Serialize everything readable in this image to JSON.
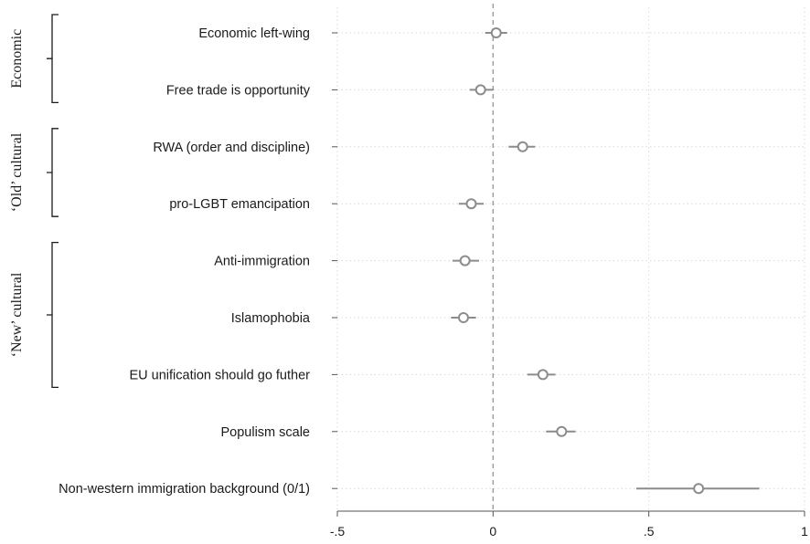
{
  "chart_data": {
    "type": "scatter",
    "orientation": "horizontal-coefficient-plot",
    "categories": [
      "Economic left-wing",
      "Free trade is opportunity",
      "RWA (order and discipline)",
      "pro-LGBT emancipation",
      "Anti-immigration",
      "Islamophobia",
      "EU unification should go futher",
      "Populism scale",
      "Non-western immigration background (0/1)"
    ],
    "estimates": [
      0.01,
      -0.04,
      0.095,
      -0.07,
      -0.09,
      -0.095,
      0.16,
      0.22,
      0.66
    ],
    "ci_low": [
      -0.025,
      -0.075,
      0.05,
      -0.11,
      -0.13,
      -0.135,
      0.11,
      0.17,
      0.46
    ],
    "ci_high": [
      0.045,
      0.0,
      0.135,
      -0.03,
      -0.045,
      -0.055,
      0.2,
      0.265,
      0.855
    ],
    "xlim": [
      -0.5,
      1.0
    ],
    "xticks": [
      -0.5,
      0,
      0.5,
      1
    ],
    "xtick_labels": [
      "-.5",
      "0",
      ".5",
      "1"
    ],
    "reference_line_x": 0,
    "gridlines": true,
    "groups": [
      {
        "label": "Economic",
        "first": 0,
        "last": 1
      },
      {
        "label": "‘Old’ cultural",
        "first": 2,
        "last": 3
      },
      {
        "label": "‘New’ cultural",
        "first": 4,
        "last": 6
      }
    ],
    "title": "",
    "xlabel": "",
    "ylabel": "",
    "colors": {
      "marker": "#8c8c8c",
      "ci": "#8c8c8c",
      "grid": "#d9d9d9",
      "reference": "#9a9a9a",
      "axis": "#555555"
    }
  }
}
